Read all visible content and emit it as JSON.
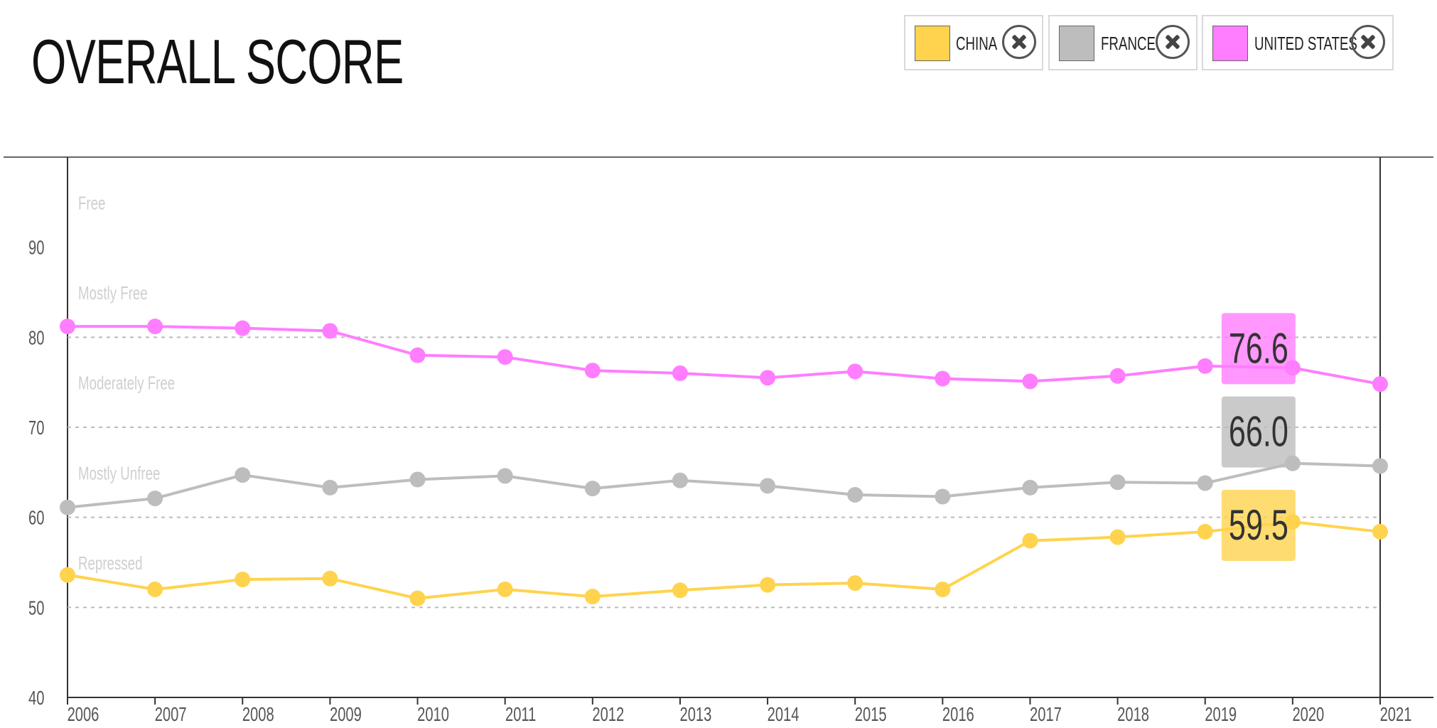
{
  "title": "OVERALL SCORE",
  "legend": [
    {
      "label": "CHINA",
      "color": "#ffd34d",
      "icon": "close-icon"
    },
    {
      "label": "FRANCE",
      "color": "#bdbdbd",
      "icon": "close-icon"
    },
    {
      "label": "UNITED STATES",
      "color": "#ff7dff",
      "icon": "close-icon"
    }
  ],
  "chart_data": {
    "type": "line",
    "title": "OVERALL SCORE",
    "x": [
      "2006",
      "2007",
      "2008",
      "2009",
      "2010",
      "2011",
      "2012",
      "2013",
      "2014",
      "2015",
      "2016",
      "2017",
      "2018",
      "2019",
      "2020",
      "2021"
    ],
    "ylim": [
      40,
      100
    ],
    "yticks": [
      40,
      50,
      60,
      70,
      80,
      90
    ],
    "grid_lines": [
      50,
      60,
      70,
      80
    ],
    "bands": [
      "Free",
      "Mostly Free",
      "Moderately Free",
      "Mostly Unfree",
      "Repressed"
    ],
    "series": [
      {
        "name": "UNITED STATES",
        "color": "#ff7dff",
        "values": [
          81.2,
          81.2,
          81.0,
          80.7,
          78.0,
          77.8,
          76.3,
          76.0,
          75.5,
          76.2,
          75.4,
          75.1,
          75.7,
          76.8,
          76.6,
          74.8
        ],
        "highlight_index": 14,
        "highlight_label": "76.6"
      },
      {
        "name": "FRANCE",
        "color": "#bdbdbd",
        "values": [
          61.1,
          62.1,
          64.7,
          63.3,
          64.2,
          64.6,
          63.2,
          64.1,
          63.5,
          62.5,
          62.3,
          63.3,
          63.9,
          63.8,
          66.0,
          65.7
        ],
        "highlight_index": 14,
        "highlight_label": "66.0"
      },
      {
        "name": "CHINA",
        "color": "#ffd34d",
        "values": [
          53.6,
          52.0,
          53.1,
          53.2,
          51.0,
          52.0,
          51.2,
          51.9,
          52.5,
          52.7,
          52.0,
          57.4,
          57.8,
          58.4,
          59.5,
          58.4
        ],
        "highlight_index": 14,
        "highlight_label": "59.5"
      }
    ]
  }
}
